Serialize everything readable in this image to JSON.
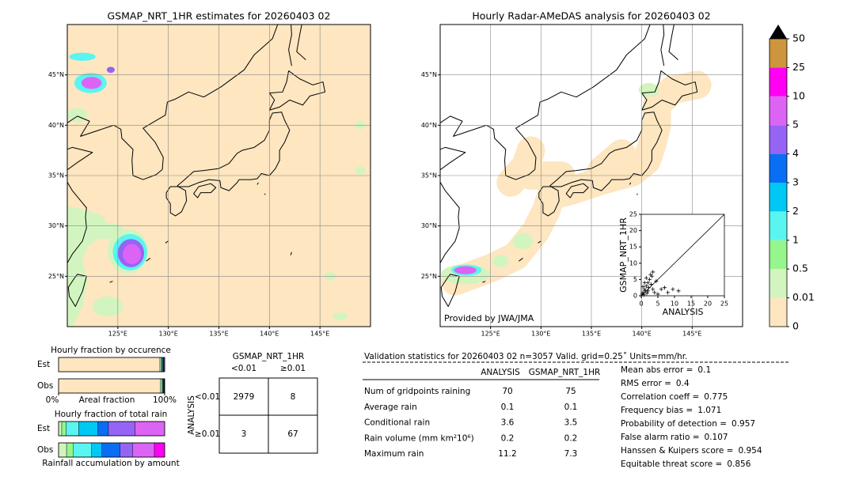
{
  "left_map": {
    "title": "GSMAP_NRT_1HR estimates for 20260403 02",
    "xlim": [
      120,
      150
    ],
    "ylim": [
      20,
      50
    ],
    "xticks": [
      {
        "value": 125,
        "label": "125°E"
      },
      {
        "value": 130,
        "label": "130°E"
      },
      {
        "value": 135,
        "label": "135°E"
      },
      {
        "value": 140,
        "label": "140°E"
      },
      {
        "value": 145,
        "label": "145°E"
      }
    ],
    "yticks": [
      {
        "value": 25,
        "label": "25°N"
      },
      {
        "value": 30,
        "label": "30°N"
      },
      {
        "value": 35,
        "label": "35°N"
      },
      {
        "value": 40,
        "label": "40°N"
      },
      {
        "value": 45,
        "label": "45°N"
      }
    ]
  },
  "right_map": {
    "title": "Hourly Radar-AMeDAS analysis for 20260403 02",
    "credit": "Provided by JWA/JMA",
    "xlim": [
      120,
      150
    ],
    "ylim": [
      20,
      50
    ],
    "xticks": [
      {
        "value": 125,
        "label": "125°E"
      },
      {
        "value": 130,
        "label": "130°E"
      },
      {
        "value": 135,
        "label": "135°E"
      },
      {
        "value": 140,
        "label": "140°E"
      },
      {
        "value": 145,
        "label": "145°E"
      }
    ],
    "yticks": [
      {
        "value": 25,
        "label": "25°N"
      },
      {
        "value": 30,
        "label": "30°N"
      },
      {
        "value": 35,
        "label": "35°N"
      },
      {
        "value": 40,
        "label": "40°N"
      },
      {
        "value": 45,
        "label": "45°N"
      }
    ]
  },
  "colorbar": {
    "levels": [
      0,
      0.01,
      0.5,
      1,
      2,
      3,
      4,
      5,
      10,
      25,
      50
    ],
    "colors": [
      "#fde6c0",
      "#d2f5c0",
      "#96f58c",
      "#5af5f0",
      "#00c8f5",
      "#0a6ef5",
      "#9664f5",
      "#dc64f5",
      "#ff00f5",
      "#cd963c"
    ],
    "over_color": "#000000"
  },
  "scatter": {
    "type": "scatter",
    "xlabel": "ANALYSIS",
    "ylabel": "GSMAP_NRT_1HR",
    "xlim": [
      0,
      25
    ],
    "ylim": [
      0,
      25
    ],
    "xticks": [
      0,
      5,
      10,
      15,
      20,
      25
    ],
    "yticks": [
      0,
      5,
      10,
      15,
      20,
      25
    ],
    "x": [
      0.3,
      0.5,
      0.8,
      1,
      1.2,
      1.5,
      1.7,
      2,
      2.2,
      2.5,
      3,
      3.2,
      3.5,
      4,
      4.5,
      5,
      6,
      7,
      8,
      9.5,
      11.2,
      0.5,
      1,
      1.5,
      2,
      2.8,
      3.5
    ],
    "y": [
      0.5,
      1,
      0.3,
      2,
      1.5,
      3,
      0.8,
      4,
      2.5,
      5,
      3.5,
      6,
      2,
      1,
      4.5,
      0.5,
      2,
      2.5,
      1,
      2,
      1.5,
      2.8,
      4,
      5.5,
      1.5,
      6.5,
      7.3
    ]
  },
  "occurrence": {
    "title": "Hourly fraction by occurence",
    "rows": [
      "Est",
      "Obs"
    ],
    "xlabel": "Areal fraction",
    "xlim": [
      0,
      100
    ],
    "xticks": [
      {
        "value": 0,
        "label": "0%"
      },
      {
        "value": 100,
        "label": "100%"
      }
    ],
    "values": [
      [
        95.5,
        1.2,
        0.6,
        0.8,
        0.5,
        0.4,
        0.3,
        0.7,
        0,
        0
      ],
      [
        95.8,
        1.6,
        0.5,
        0.7,
        0.4,
        0.3,
        0.2,
        0.3,
        0.2,
        0
      ]
    ]
  },
  "total_rain": {
    "title": "Hourly fraction of total rain",
    "rows": [
      "Est",
      "Obs"
    ],
    "xlabel": "Rainfall accumulation by amount",
    "values": [
      [
        0,
        3,
        4,
        12,
        18,
        10,
        25,
        28,
        0,
        0
      ],
      [
        0,
        7,
        6,
        16,
        9,
        16,
        11,
        19,
        9,
        0
      ]
    ]
  },
  "contingency": {
    "title": "GSMAP_NRT_1HR",
    "columns": [
      "<0.01",
      "≥0.01"
    ],
    "row_title": "ANALYSIS",
    "rows": [
      "<0.01",
      "≥0.01"
    ],
    "cells": [
      [
        2979,
        8
      ],
      [
        3,
        67
      ]
    ]
  },
  "validation": {
    "header": "Validation statistics for 20260403 02  n=3057 Valid. grid=0.25˚ Units=mm/hr.",
    "columns": [
      "ANALYSIS",
      "GSMAP_NRT_1HR"
    ],
    "rows": [
      {
        "label": "Num of gridpoints raining",
        "values": [
          70,
          75
        ]
      },
      {
        "label": "Average rain",
        "values": [
          0.1,
          0.1
        ]
      },
      {
        "label": "Conditional rain",
        "values": [
          3.6,
          3.5
        ]
      },
      {
        "label": "Rain volume (mm km²10⁶)",
        "values": [
          0.2,
          0.2
        ]
      },
      {
        "label": "Maximum rain",
        "values": [
          11.2,
          7.3
        ]
      }
    ]
  },
  "scores": [
    {
      "label": "Mean abs error =",
      "value": 0.1
    },
    {
      "label": "RMS error =",
      "value": 0.4
    },
    {
      "label": "Correlation coeff =",
      "value": 0.775
    },
    {
      "label": "Frequency bias =",
      "value": 1.071
    },
    {
      "label": "Probability of detection =",
      "value": 0.957
    },
    {
      "label": "False alarm ratio =",
      "value": 0.107
    },
    {
      "label": "Hanssen & Kuipers score =",
      "value": 0.954
    },
    {
      "label": "Equitable threat score =",
      "value": 0.856
    }
  ]
}
